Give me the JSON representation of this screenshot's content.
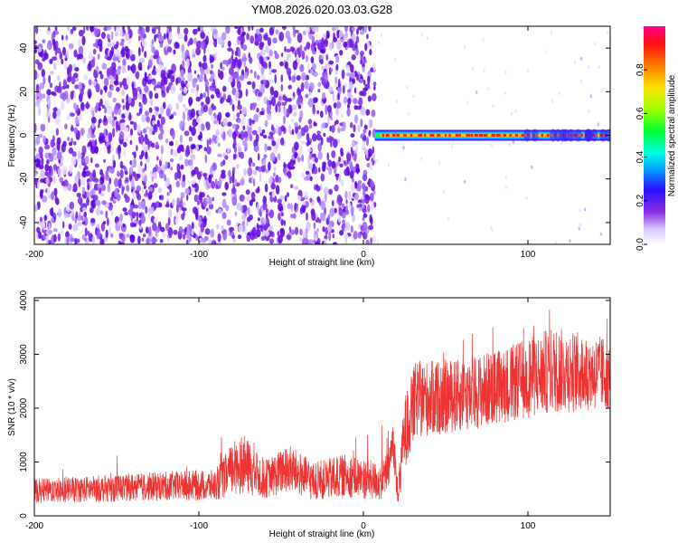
{
  "title": "YM08.2026.020.03.03.G28",
  "chart_data": [
    {
      "type": "heatmap",
      "xlabel": "Height of straight line (km)",
      "ylabel": "Frequency (Hz)",
      "xlim": [
        -200,
        150
      ],
      "ylim": [
        -50,
        50
      ],
      "xticks": [
        -200,
        -100,
        0,
        100
      ],
      "yticks": [
        -40,
        -20,
        0,
        20,
        40
      ],
      "colorbar": {
        "label": "Normalized spectral amplitude",
        "range": [
          0,
          1
        ],
        "ticks": [
          "0.0",
          "0.2",
          "0.4",
          "0.6",
          "0.8"
        ]
      },
      "features": {
        "noise_region_x": [
          -200,
          7
        ],
        "sparse_noise_x": [
          7,
          150
        ],
        "tone_frequency_hz": 0,
        "tone_start_x": 7
      }
    },
    {
      "type": "line",
      "xlabel": "Height of straight line (km)",
      "ylabel": "SNR (10 * v/v)",
      "xlim": [
        -200,
        150
      ],
      "ylim": [
        0,
        4050
      ],
      "xticks": [
        -200,
        -100,
        0,
        100
      ],
      "yticks": [
        0,
        1000,
        2000,
        3000,
        4000
      ],
      "grid": false,
      "series": [
        {
          "color": "#ee3333",
          "envelope": [
            {
              "x": -200,
              "base": 350,
              "amp": 500
            },
            {
              "x": -160,
              "base": 380,
              "amp": 550
            },
            {
              "x": -120,
              "base": 420,
              "amp": 600
            },
            {
              "x": -90,
              "base": 420,
              "amp": 650
            },
            {
              "x": -75,
              "base": 700,
              "amp": 1300
            },
            {
              "x": -60,
              "base": 500,
              "amp": 800
            },
            {
              "x": -45,
              "base": 650,
              "amp": 1000
            },
            {
              "x": -30,
              "base": 450,
              "amp": 800
            },
            {
              "x": -10,
              "base": 550,
              "amp": 900
            },
            {
              "x": 10,
              "base": 450,
              "amp": 800
            },
            {
              "x": 15,
              "base": 600,
              "amp": 900
            },
            {
              "x": 18,
              "base": 1200,
              "amp": 1000
            },
            {
              "x": 21,
              "base": 250,
              "amp": 500
            },
            {
              "x": 25,
              "base": 1200,
              "amp": 1500
            },
            {
              "x": 32,
              "base": 1800,
              "amp": 1600
            },
            {
              "x": 60,
              "base": 1900,
              "amp": 1500
            },
            {
              "x": 90,
              "base": 2100,
              "amp": 1600
            },
            {
              "x": 115,
              "base": 2300,
              "amp": 1800
            },
            {
              "x": 150,
              "base": 2300,
              "amp": 1500
            }
          ]
        }
      ]
    }
  ]
}
